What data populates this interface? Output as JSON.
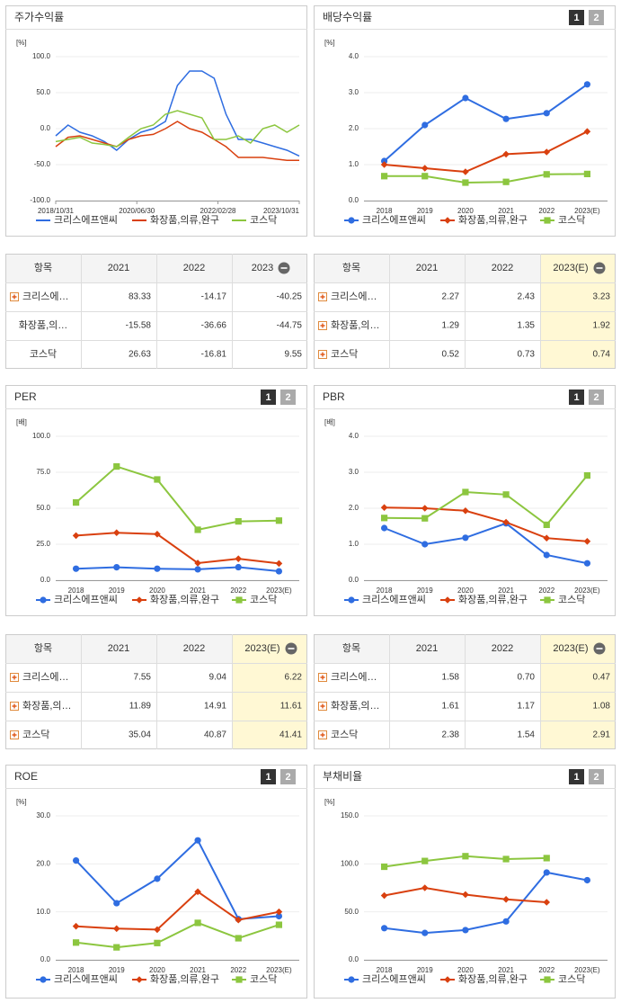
{
  "chart_data": [
    {
      "type": "line",
      "title": "주가수익률",
      "unit": "[%]",
      "x": [
        "2018/10/31",
        "2019/01/31",
        "2019/04/30",
        "2019/07/31",
        "2019/10/31",
        "2020/01/31",
        "2020/04/30",
        "2020/07/31",
        "2020/10/31",
        "2021/01/31",
        "2021/04/30",
        "2021/07/31",
        "2021/10/31",
        "2022/01/31",
        "2022/04/30",
        "2022/07/31",
        "2022/10/31",
        "2023/01/31",
        "2023/04/30",
        "2023/07/31",
        "2023/10/31"
      ],
      "xlim": [
        "2018/10/31",
        "2023/10/31"
      ],
      "xticks": [
        "2018/10/31",
        "2020/06/30",
        "2022/02/28",
        "2023/10/31"
      ],
      "ylim": [
        -100,
        100
      ],
      "yticks": [
        {
          "value": -100,
          "label": "-100.0"
        },
        {
          "value": -50,
          "label": "-50.0"
        },
        {
          "value": 0,
          "label": "0.0"
        },
        {
          "value": 50,
          "label": "50.0"
        },
        {
          "value": 100,
          "label": "100.0"
        }
      ],
      "grid": true,
      "legend": "bottom",
      "series": [
        {
          "name": "크리스에프앤씨",
          "color": "#2f6de1",
          "values": [
            -10,
            5,
            -5,
            -10,
            -18,
            -30,
            -15,
            -5,
            0,
            10,
            60,
            80,
            80,
            70,
            20,
            -15,
            -15,
            -20,
            -25,
            -30,
            -38
          ]
        },
        {
          "name": "화장품,의류,완구",
          "color": "#d9400f",
          "values": [
            -25,
            -12,
            -10,
            -15,
            -20,
            -25,
            -15,
            -10,
            -8,
            0,
            10,
            0,
            -5,
            -15,
            -25,
            -40,
            -40,
            -40,
            -42,
            -44,
            -44
          ]
        },
        {
          "name": "코스닥",
          "color": "#8cc63f",
          "values": [
            -18,
            -15,
            -12,
            -20,
            -22,
            -25,
            -12,
            0,
            5,
            20,
            25,
            20,
            15,
            -15,
            -15,
            -10,
            -20,
            0,
            5,
            -5,
            5
          ]
        }
      ]
    },
    {
      "type": "line",
      "title": "배당수익률",
      "buttons": [
        "1",
        "2"
      ],
      "unit": "[%]",
      "categories": [
        "2018",
        "2019",
        "2020",
        "2021",
        "2022",
        "2023(E)"
      ],
      "ylim": [
        0,
        4
      ],
      "yticks": [
        {
          "value": 0,
          "label": "0.0"
        },
        {
          "value": 1,
          "label": "1.0"
        },
        {
          "value": 2,
          "label": "2.0"
        },
        {
          "value": 3,
          "label": "3.0"
        },
        {
          "value": 4,
          "label": "4.0"
        }
      ],
      "grid": true,
      "legend": "bottom",
      "series": [
        {
          "name": "크리스에프앤씨",
          "color": "#2f6de1",
          "marker": "circle",
          "values": [
            1.1,
            2.1,
            2.85,
            2.27,
            2.43,
            3.23
          ]
        },
        {
          "name": "화장품,의류,완구",
          "color": "#d9400f",
          "marker": "diamond",
          "values": [
            1.0,
            0.9,
            0.8,
            1.29,
            1.35,
            1.92
          ]
        },
        {
          "name": "코스닥",
          "color": "#8cc63f",
          "marker": "square",
          "values": [
            0.68,
            0.68,
            0.5,
            0.52,
            0.73,
            0.74
          ]
        }
      ]
    },
    {
      "type": "line",
      "title": "PER",
      "buttons": [
        "1",
        "2"
      ],
      "unit": "[배]",
      "categories": [
        "2018",
        "2019",
        "2020",
        "2021",
        "2022",
        "2023(E)"
      ],
      "ylim": [
        0,
        100
      ],
      "yticks": [
        {
          "value": 0,
          "label": "0.0"
        },
        {
          "value": 25,
          "label": "25.0"
        },
        {
          "value": 50,
          "label": "50.0"
        },
        {
          "value": 75,
          "label": "75.0"
        },
        {
          "value": 100,
          "label": "100.0"
        }
      ],
      "grid": true,
      "legend": "bottom",
      "series": [
        {
          "name": "크리스에프앤씨",
          "color": "#2f6de1",
          "marker": "circle",
          "values": [
            8,
            9,
            8,
            7.55,
            9.04,
            6.22
          ]
        },
        {
          "name": "화장품,의류,완구",
          "color": "#d9400f",
          "marker": "diamond",
          "values": [
            31,
            33,
            32,
            11.89,
            14.91,
            11.61
          ]
        },
        {
          "name": "코스닥",
          "color": "#8cc63f",
          "marker": "square",
          "values": [
            54,
            79,
            70,
            35.04,
            40.87,
            41.41
          ]
        }
      ]
    },
    {
      "type": "line",
      "title": "PBR",
      "buttons": [
        "1",
        "2"
      ],
      "unit": "[배]",
      "categories": [
        "2018",
        "2019",
        "2020",
        "2021",
        "2022",
        "2023(E)"
      ],
      "ylim": [
        0,
        4
      ],
      "yticks": [
        {
          "value": 0,
          "label": "0.0"
        },
        {
          "value": 1,
          "label": "1.0"
        },
        {
          "value": 2,
          "label": "2.0"
        },
        {
          "value": 3,
          "label": "3.0"
        },
        {
          "value": 4,
          "label": "4.0"
        }
      ],
      "grid": true,
      "legend": "bottom",
      "series": [
        {
          "name": "크리스에프앤씨",
          "color": "#2f6de1",
          "marker": "circle",
          "values": [
            1.45,
            1.0,
            1.18,
            1.58,
            0.7,
            0.47
          ]
        },
        {
          "name": "화장품,의류,완구",
          "color": "#d9400f",
          "marker": "diamond",
          "values": [
            2.02,
            2.0,
            1.93,
            1.61,
            1.17,
            1.08
          ]
        },
        {
          "name": "코스닥",
          "color": "#8cc63f",
          "marker": "square",
          "values": [
            1.73,
            1.72,
            2.45,
            2.38,
            1.54,
            2.91
          ]
        }
      ]
    },
    {
      "type": "line",
      "title": "ROE",
      "buttons": [
        "1",
        "2"
      ],
      "unit": "[%]",
      "categories": [
        "2018",
        "2019",
        "2020",
        "2021",
        "2022",
        "2023(E)"
      ],
      "ylim": [
        0,
        30
      ],
      "yticks": [
        {
          "value": 0,
          "label": "0.0"
        },
        {
          "value": 10,
          "label": "10.0"
        },
        {
          "value": 20,
          "label": "20.0"
        },
        {
          "value": 30,
          "label": "30.0"
        }
      ],
      "grid": true,
      "legend": "bottom",
      "series": [
        {
          "name": "크리스에프앤씨",
          "color": "#2f6de1",
          "marker": "circle",
          "values": [
            20.7,
            11.8,
            16.9,
            24.9,
            8.5,
            9.1
          ]
        },
        {
          "name": "화장품,의류,완구",
          "color": "#d9400f",
          "marker": "diamond",
          "values": [
            7.0,
            6.5,
            6.3,
            14.2,
            8.3,
            10.0
          ]
        },
        {
          "name": "코스닥",
          "color": "#8cc63f",
          "marker": "square",
          "values": [
            3.6,
            2.6,
            3.5,
            7.7,
            4.5,
            7.3
          ]
        }
      ]
    },
    {
      "type": "line",
      "title": "부채비율",
      "buttons": [
        "1",
        "2"
      ],
      "unit": "[%]",
      "categories": [
        "2018",
        "2019",
        "2020",
        "2021",
        "2022",
        "2023(E)"
      ],
      "ylim": [
        0,
        150
      ],
      "yticks": [
        {
          "value": 0,
          "label": "0.0"
        },
        {
          "value": 50,
          "label": "50.0"
        },
        {
          "value": 100,
          "label": "100.0"
        },
        {
          "value": 150,
          "label": "150.0"
        }
      ],
      "grid": true,
      "legend": "bottom",
      "series": [
        {
          "name": "크리스에프앤씨",
          "color": "#2f6de1",
          "marker": "circle",
          "values": [
            33,
            28,
            31,
            40,
            91,
            83
          ]
        },
        {
          "name": "화장품,의류,완구",
          "color": "#d9400f",
          "marker": "diamond",
          "values": [
            67,
            75,
            68,
            63,
            60,
            null
          ]
        },
        {
          "name": "코스닥",
          "color": "#8cc63f",
          "marker": "square",
          "values": [
            97,
            103,
            108,
            105,
            106,
            null
          ]
        }
      ]
    }
  ],
  "tables": [
    {
      "header": [
        "항목",
        "2021",
        "2022",
        "2023"
      ],
      "collapsible": true,
      "highlight_last": false,
      "expandable": [
        true,
        false,
        false
      ],
      "rows": [
        {
          "label": "크리스에…",
          "values": [
            "83.33",
            "-14.17",
            "-40.25"
          ]
        },
        {
          "label": "화장품,의…",
          "values": [
            "-15.58",
            "-36.66",
            "-44.75"
          ]
        },
        {
          "label": "코스닥",
          "values": [
            "26.63",
            "-16.81",
            "9.55"
          ]
        }
      ]
    },
    {
      "header": [
        "항목",
        "2021",
        "2022",
        "2023(E)"
      ],
      "collapsible": true,
      "highlight_last": true,
      "expandable": [
        true,
        true,
        true
      ],
      "rows": [
        {
          "label": "크리스에…",
          "values": [
            "2.27",
            "2.43",
            "3.23"
          ]
        },
        {
          "label": "화장품,의…",
          "values": [
            "1.29",
            "1.35",
            "1.92"
          ]
        },
        {
          "label": "코스닥",
          "values": [
            "0.52",
            "0.73",
            "0.74"
          ]
        }
      ]
    },
    {
      "header": [
        "항목",
        "2021",
        "2022",
        "2023(E)"
      ],
      "collapsible": true,
      "highlight_last": true,
      "expandable": [
        true,
        true,
        true
      ],
      "rows": [
        {
          "label": "크리스에…",
          "values": [
            "7.55",
            "9.04",
            "6.22"
          ]
        },
        {
          "label": "화장품,의…",
          "values": [
            "11.89",
            "14.91",
            "11.61"
          ]
        },
        {
          "label": "코스닥",
          "values": [
            "35.04",
            "40.87",
            "41.41"
          ]
        }
      ]
    },
    {
      "header": [
        "항목",
        "2021",
        "2022",
        "2023(E)"
      ],
      "collapsible": true,
      "highlight_last": true,
      "expandable": [
        true,
        true,
        true
      ],
      "rows": [
        {
          "label": "크리스에…",
          "values": [
            "1.58",
            "0.70",
            "0.47"
          ]
        },
        {
          "label": "화장품,의…",
          "values": [
            "1.61",
            "1.17",
            "1.08"
          ]
        },
        {
          "label": "코스닥",
          "values": [
            "2.38",
            "1.54",
            "2.91"
          ]
        }
      ]
    }
  ]
}
